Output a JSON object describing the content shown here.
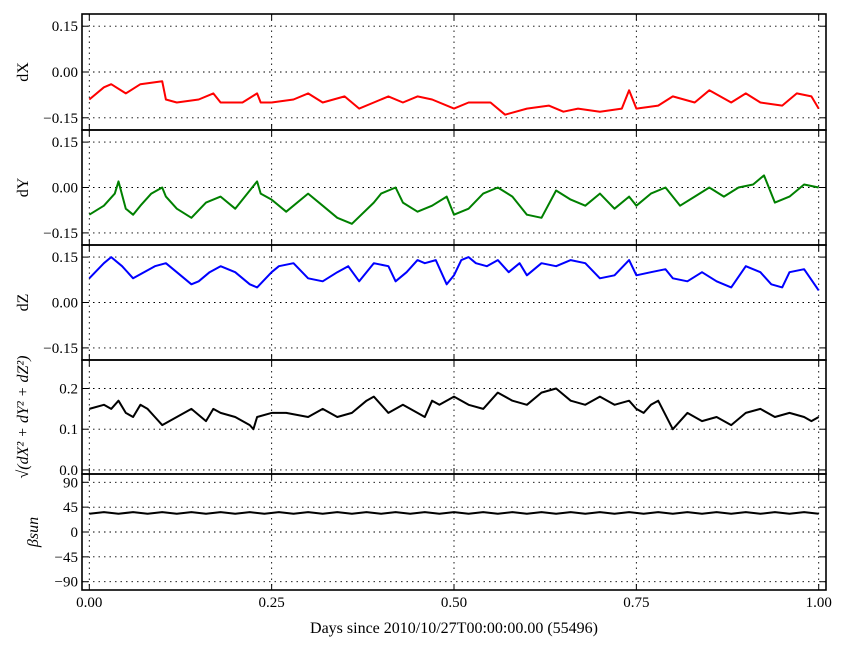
{
  "chart_data": {
    "type": "line",
    "xlabel": "Days since 2010/10/27T00:00:00.00 (55496)",
    "xlim": [
      -0.01,
      1.01
    ],
    "xticks": [
      0.0,
      0.25,
      0.5,
      0.75,
      1.0
    ],
    "xtick_labels": [
      "0.00",
      "0.25",
      "0.50",
      "0.75",
      "1.00"
    ],
    "grid": true,
    "panels": [
      {
        "ylabel": "dX",
        "color": "#ff0000",
        "ylim": [
          -0.19,
          0.19
        ],
        "yticks": [
          0.15,
          0.0,
          -0.15
        ],
        "ytick_labels": [
          "0.15",
          "0.00",
          "−0.15"
        ],
        "x": [
          0.0,
          0.02,
          0.03,
          0.05,
          0.07,
          0.1,
          0.105,
          0.12,
          0.15,
          0.17,
          0.18,
          0.21,
          0.23,
          0.235,
          0.25,
          0.28,
          0.3,
          0.32,
          0.35,
          0.37,
          0.39,
          0.41,
          0.43,
          0.45,
          0.47,
          0.5,
          0.52,
          0.55,
          0.57,
          0.6,
          0.63,
          0.65,
          0.67,
          0.7,
          0.73,
          0.74,
          0.75,
          0.78,
          0.8,
          0.83,
          0.85,
          0.88,
          0.9,
          0.92,
          0.95,
          0.97,
          0.99,
          1.0
        ],
        "y": [
          -0.09,
          -0.05,
          -0.04,
          -0.07,
          -0.04,
          -0.03,
          -0.09,
          -0.1,
          -0.09,
          -0.07,
          -0.1,
          -0.1,
          -0.07,
          -0.1,
          -0.1,
          -0.09,
          -0.07,
          -0.1,
          -0.08,
          -0.12,
          -0.1,
          -0.08,
          -0.1,
          -0.08,
          -0.09,
          -0.12,
          -0.1,
          -0.1,
          -0.14,
          -0.12,
          -0.11,
          -0.13,
          -0.12,
          -0.13,
          -0.12,
          -0.06,
          -0.12,
          -0.11,
          -0.08,
          -0.1,
          -0.06,
          -0.1,
          -0.07,
          -0.1,
          -0.11,
          -0.07,
          -0.08,
          -0.12
        ]
      },
      {
        "ylabel": "dY",
        "color": "#008000",
        "ylim": [
          -0.19,
          0.19
        ],
        "yticks": [
          0.15,
          0.0,
          -0.15
        ],
        "ytick_labels": [
          "0.15",
          "0.00",
          "−0.15"
        ],
        "x": [
          0.0,
          0.02,
          0.035,
          0.04,
          0.05,
          0.06,
          0.07,
          0.085,
          0.1,
          0.105,
          0.12,
          0.14,
          0.16,
          0.18,
          0.2,
          0.22,
          0.23,
          0.235,
          0.25,
          0.27,
          0.3,
          0.32,
          0.34,
          0.36,
          0.39,
          0.4,
          0.42,
          0.43,
          0.45,
          0.47,
          0.49,
          0.5,
          0.52,
          0.54,
          0.56,
          0.58,
          0.6,
          0.62,
          0.64,
          0.66,
          0.68,
          0.7,
          0.72,
          0.74,
          0.75,
          0.77,
          0.79,
          0.81,
          0.83,
          0.85,
          0.87,
          0.89,
          0.91,
          0.925,
          0.94,
          0.96,
          0.98,
          1.0
        ],
        "y": [
          -0.09,
          -0.06,
          -0.02,
          0.02,
          -0.07,
          -0.09,
          -0.06,
          -0.02,
          0.0,
          -0.03,
          -0.07,
          -0.1,
          -0.05,
          -0.03,
          -0.07,
          -0.01,
          0.02,
          -0.02,
          -0.04,
          -0.08,
          -0.02,
          -0.06,
          -0.1,
          -0.12,
          -0.05,
          -0.02,
          0.0,
          -0.05,
          -0.08,
          -0.06,
          -0.03,
          -0.09,
          -0.07,
          -0.02,
          0.0,
          -0.03,
          -0.09,
          -0.1,
          -0.01,
          -0.04,
          -0.06,
          -0.02,
          -0.07,
          -0.03,
          -0.06,
          -0.02,
          0.0,
          -0.06,
          -0.03,
          0.0,
          -0.03,
          0.0,
          0.01,
          0.04,
          -0.05,
          -0.03,
          0.01,
          0.0
        ]
      },
      {
        "ylabel": "dZ",
        "color": "#0000ff",
        "ylim": [
          -0.19,
          0.19
        ],
        "yticks": [
          0.15,
          0.0,
          -0.15
        ],
        "ytick_labels": [
          "0.15",
          "0.00",
          "−0.15"
        ],
        "x": [
          0.0,
          0.02,
          0.03,
          0.045,
          0.06,
          0.075,
          0.09,
          0.105,
          0.12,
          0.14,
          0.15,
          0.165,
          0.18,
          0.2,
          0.22,
          0.23,
          0.25,
          0.26,
          0.28,
          0.3,
          0.32,
          0.34,
          0.355,
          0.37,
          0.39,
          0.41,
          0.42,
          0.435,
          0.45,
          0.46,
          0.475,
          0.49,
          0.5,
          0.51,
          0.52,
          0.53,
          0.545,
          0.56,
          0.575,
          0.59,
          0.6,
          0.62,
          0.64,
          0.66,
          0.68,
          0.7,
          0.72,
          0.74,
          0.75,
          0.77,
          0.79,
          0.8,
          0.82,
          0.84,
          0.86,
          0.88,
          0.9,
          0.92,
          0.935,
          0.95,
          0.96,
          0.98,
          1.0
        ],
        "y": [
          0.08,
          0.13,
          0.15,
          0.12,
          0.08,
          0.1,
          0.12,
          0.13,
          0.1,
          0.06,
          0.07,
          0.1,
          0.12,
          0.1,
          0.06,
          0.05,
          0.1,
          0.12,
          0.13,
          0.08,
          0.07,
          0.1,
          0.12,
          0.07,
          0.13,
          0.12,
          0.07,
          0.1,
          0.14,
          0.13,
          0.14,
          0.06,
          0.09,
          0.14,
          0.15,
          0.13,
          0.12,
          0.14,
          0.1,
          0.13,
          0.09,
          0.13,
          0.12,
          0.14,
          0.13,
          0.08,
          0.09,
          0.14,
          0.09,
          0.1,
          0.11,
          0.08,
          0.07,
          0.1,
          0.07,
          0.05,
          0.12,
          0.1,
          0.06,
          0.05,
          0.1,
          0.11,
          0.04
        ]
      },
      {
        "ylabel": "√(dX² + dY² + dZ²)",
        "color": "#000000",
        "ylim": [
          -0.01,
          0.27
        ],
        "yticks": [
          0.2,
          0.1,
          0.0
        ],
        "ytick_labels": [
          "0.2",
          "0.1",
          "0.0"
        ],
        "x": [
          0.0,
          0.02,
          0.03,
          0.04,
          0.05,
          0.06,
          0.07,
          0.08,
          0.09,
          0.1,
          0.12,
          0.14,
          0.16,
          0.17,
          0.18,
          0.2,
          0.22,
          0.225,
          0.23,
          0.25,
          0.27,
          0.3,
          0.32,
          0.34,
          0.36,
          0.38,
          0.39,
          0.41,
          0.43,
          0.45,
          0.46,
          0.47,
          0.48,
          0.5,
          0.52,
          0.54,
          0.56,
          0.58,
          0.6,
          0.62,
          0.64,
          0.66,
          0.68,
          0.7,
          0.72,
          0.74,
          0.75,
          0.76,
          0.77,
          0.78,
          0.8,
          0.82,
          0.84,
          0.86,
          0.88,
          0.9,
          0.92,
          0.94,
          0.96,
          0.98,
          0.99,
          1.0
        ],
        "y": [
          0.15,
          0.16,
          0.15,
          0.17,
          0.14,
          0.13,
          0.16,
          0.15,
          0.13,
          0.11,
          0.13,
          0.15,
          0.12,
          0.15,
          0.14,
          0.13,
          0.11,
          0.1,
          0.13,
          0.14,
          0.14,
          0.13,
          0.15,
          0.13,
          0.14,
          0.17,
          0.18,
          0.14,
          0.16,
          0.14,
          0.13,
          0.17,
          0.16,
          0.18,
          0.16,
          0.15,
          0.19,
          0.17,
          0.16,
          0.19,
          0.2,
          0.17,
          0.16,
          0.18,
          0.16,
          0.17,
          0.15,
          0.14,
          0.16,
          0.17,
          0.1,
          0.14,
          0.12,
          0.13,
          0.11,
          0.14,
          0.15,
          0.13,
          0.14,
          0.13,
          0.12,
          0.13
        ]
      },
      {
        "ylabel": "βsun",
        "color": "#000000",
        "ylim": [
          -105,
          105
        ],
        "yticks": [
          90,
          45,
          0,
          -45,
          -90
        ],
        "ytick_labels": [
          "90",
          "45",
          "0",
          "−45",
          "−90"
        ],
        "x": [
          0.0,
          0.02,
          0.04,
          0.06,
          0.08,
          0.1,
          0.12,
          0.14,
          0.16,
          0.18,
          0.2,
          0.22,
          0.24,
          0.26,
          0.28,
          0.3,
          0.32,
          0.34,
          0.36,
          0.38,
          0.4,
          0.42,
          0.44,
          0.46,
          0.48,
          0.5,
          0.52,
          0.54,
          0.56,
          0.58,
          0.6,
          0.62,
          0.64,
          0.66,
          0.68,
          0.7,
          0.72,
          0.74,
          0.76,
          0.78,
          0.8,
          0.82,
          0.84,
          0.86,
          0.88,
          0.9,
          0.92,
          0.94,
          0.96,
          0.98,
          1.0
        ],
        "y": [
          33,
          36,
          33,
          36,
          33,
          36,
          33,
          36,
          33,
          36,
          33,
          36,
          33,
          36,
          33,
          36,
          33,
          36,
          33,
          36,
          33,
          36,
          33,
          36,
          33,
          36,
          33,
          36,
          33,
          36,
          33,
          36,
          33,
          36,
          33,
          36,
          33,
          36,
          33,
          36,
          33,
          36,
          33,
          36,
          33,
          36,
          33,
          36,
          33,
          36,
          33
        ]
      }
    ]
  }
}
